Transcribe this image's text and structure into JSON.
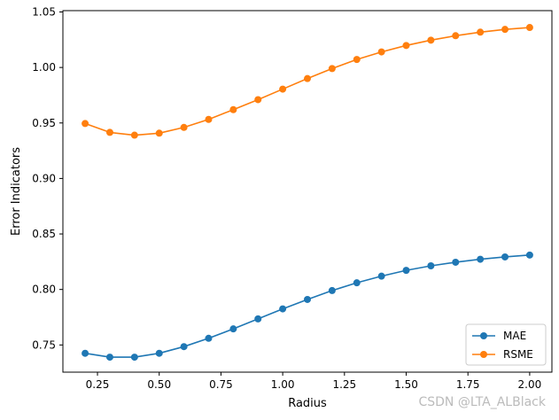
{
  "chart_data": {
    "type": "line",
    "title": "",
    "xlabel": "Radius",
    "ylabel": "Error Indicators",
    "xlim": [
      0.11,
      2.09
    ],
    "ylim": [
      0.7255,
      1.0512
    ],
    "xticks": [
      0.25,
      0.5,
      0.75,
      1.0,
      1.25,
      1.5,
      1.75,
      2.0
    ],
    "xtick_labels": [
      "0.25",
      "0.50",
      "0.75",
      "1.00",
      "1.25",
      "1.50",
      "1.75",
      "2.00"
    ],
    "yticks": [
      0.75,
      0.8,
      0.85,
      0.9,
      0.95,
      1.0,
      1.05
    ],
    "ytick_labels": [
      "0.75",
      "0.80",
      "0.85",
      "0.90",
      "0.95",
      "1.00",
      "1.05"
    ],
    "grid": false,
    "legend_position": "lower right",
    "x": [
      0.2,
      0.3,
      0.4,
      0.5,
      0.6,
      0.7,
      0.8,
      0.9,
      1.0,
      1.1,
      1.2,
      1.3,
      1.4,
      1.5,
      1.6,
      1.7,
      1.8,
      1.9,
      2.0
    ],
    "series": [
      {
        "name": "MAE",
        "color": "#1f77b4",
        "values": [
          0.7425,
          0.739,
          0.739,
          0.7425,
          0.7485,
          0.756,
          0.7645,
          0.7735,
          0.7825,
          0.791,
          0.799,
          0.806,
          0.812,
          0.8172,
          0.8213,
          0.8245,
          0.8272,
          0.8293,
          0.831
        ]
      },
      {
        "name": "RSME",
        "color": "#ff7f0e",
        "values": [
          0.9495,
          0.9415,
          0.939,
          0.9408,
          0.946,
          0.9532,
          0.962,
          0.971,
          0.9805,
          0.99,
          0.999,
          1.0072,
          1.014,
          1.0198,
          1.0246,
          1.0286,
          1.0318,
          1.0343,
          1.036
        ]
      }
    ]
  },
  "watermark": "CSDN @LTA_ALBlack"
}
